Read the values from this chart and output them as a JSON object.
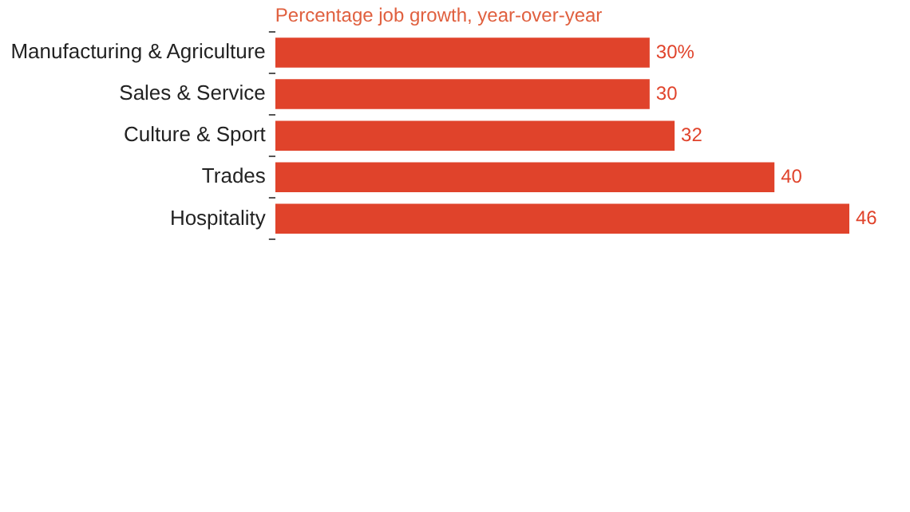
{
  "chart_data": {
    "type": "bar",
    "orientation": "horizontal",
    "title": "Percentage job growth, year-over-year",
    "categories": [
      "Manufacturing & Agriculture",
      "Sales & Service",
      "Culture & Sport",
      "Trades",
      "Hospitality"
    ],
    "values": [
      30,
      30,
      32,
      40,
      46
    ],
    "value_labels": [
      "30%",
      "30",
      "32",
      "40",
      "46"
    ],
    "color": "#e0432b",
    "grid": false,
    "legend": false,
    "tick_labels": "y"
  }
}
